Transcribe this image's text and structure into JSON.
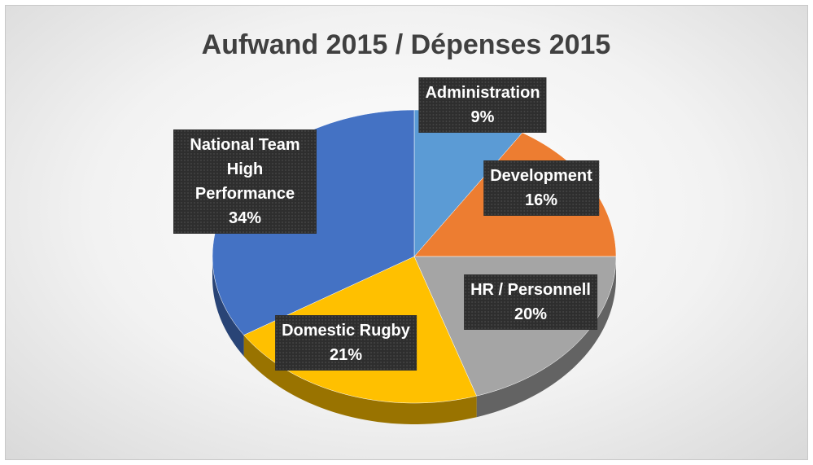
{
  "chart_data": {
    "type": "pie",
    "title": "Aufwand 2015 / Dépenses 2015",
    "categories": [
      "Administration",
      "Development",
      "HR / Personnell",
      "Domestic Rugby",
      "National Team High Performance"
    ],
    "values": [
      9,
      16,
      20,
      21,
      34
    ],
    "value_labels": [
      "9%",
      "16%",
      "20%",
      "21%",
      "34%"
    ],
    "colors": [
      "#5b9bd5",
      "#ed7d31",
      "#a5a5a5",
      "#ffc000",
      "#4472c4"
    ]
  }
}
